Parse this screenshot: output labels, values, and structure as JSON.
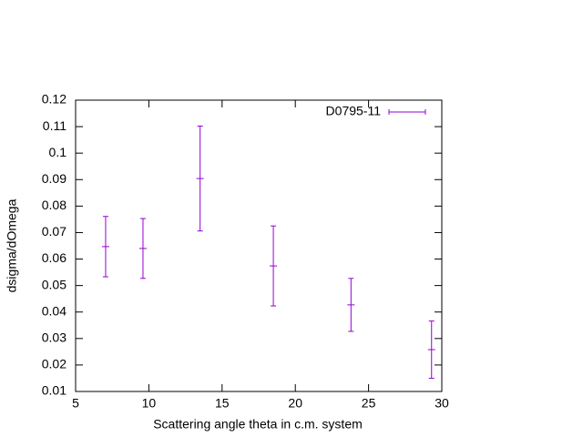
{
  "chart_data": {
    "type": "errorbar",
    "xlabel": "Scattering angle theta in c.m. system",
    "ylabel": "dsigma/dOmega",
    "series": [
      {
        "name": "D0795-11",
        "color": "#9400d3",
        "x": [
          7.05,
          9.6,
          13.5,
          18.5,
          23.8,
          29.3
        ],
        "values": [
          0.0647,
          0.064,
          0.0904,
          0.0574,
          0.0427,
          0.0258
        ],
        "errors": [
          0.0114,
          0.0113,
          0.0198,
          0.0151,
          0.01,
          0.0108
        ]
      }
    ],
    "xlim": [
      5,
      30
    ],
    "xticks": [
      5,
      10,
      15,
      20,
      25,
      30
    ],
    "ylim": [
      0.01,
      0.12
    ],
    "yticks": [
      0.01,
      0.02,
      0.03,
      0.04,
      0.05,
      0.06,
      0.07,
      0.08,
      0.09,
      0.1,
      0.11,
      0.12
    ],
    "legend": "top-right",
    "grid": false
  }
}
